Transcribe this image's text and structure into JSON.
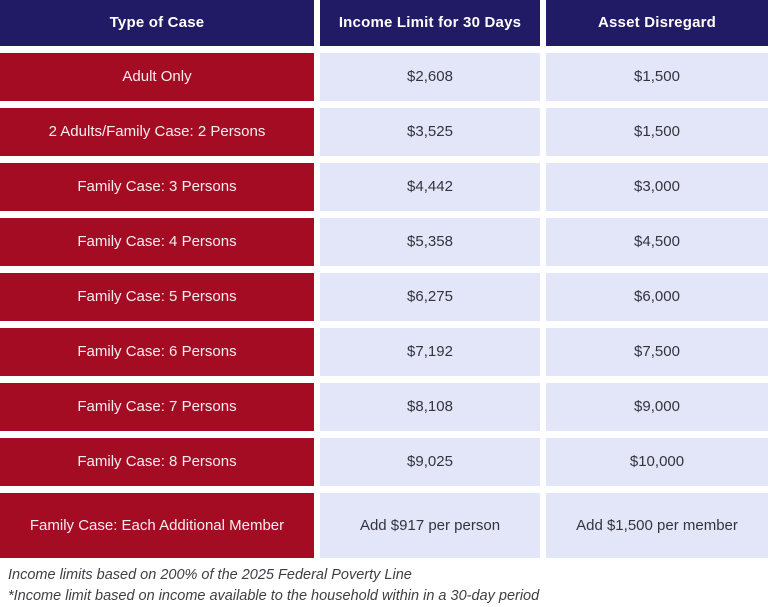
{
  "table": {
    "headers": {
      "case": "Type of Case",
      "income": "Income Limit for 30 Days",
      "asset": "Asset Disregard"
    },
    "rows": [
      {
        "case": "Adult Only",
        "income": "$2,608",
        "asset": "$1,500"
      },
      {
        "case": "2 Adults/Family Case: 2 Persons",
        "income": "$3,525",
        "asset": "$1,500"
      },
      {
        "case": "Family Case: 3 Persons",
        "income": "$4,442",
        "asset": "$3,000"
      },
      {
        "case": "Family Case: 4 Persons",
        "income": "$5,358",
        "asset": "$4,500"
      },
      {
        "case": "Family Case: 5 Persons",
        "income": "$6,275",
        "asset": "$6,000"
      },
      {
        "case": "Family Case: 6 Persons",
        "income": "$7,192",
        "asset": "$7,500"
      },
      {
        "case": "Family Case: 7 Persons",
        "income": "$8,108",
        "asset": "$9,000"
      },
      {
        "case": "Family Case: 8 Persons",
        "income": "$9,025",
        "asset": "$10,000"
      },
      {
        "case": "Family Case: Each Additional Member",
        "income": "Add $917 per person",
        "asset": "Add $1,500 per member"
      }
    ]
  },
  "footnotes": {
    "line1": "Income limits based on 200% of the 2025 Federal Poverty Line",
    "line2": "*Income limit based on income available to the household within in a 30-day period"
  },
  "colors": {
    "header_bg": "#211a64",
    "case_bg": "#a40c24",
    "value_bg": "#e2e6f8",
    "header_text": "#ffffff",
    "case_text": "#f6edef",
    "value_text": "#35343e",
    "footnote_text": "#3f3e46",
    "gap": "#ffffff"
  }
}
